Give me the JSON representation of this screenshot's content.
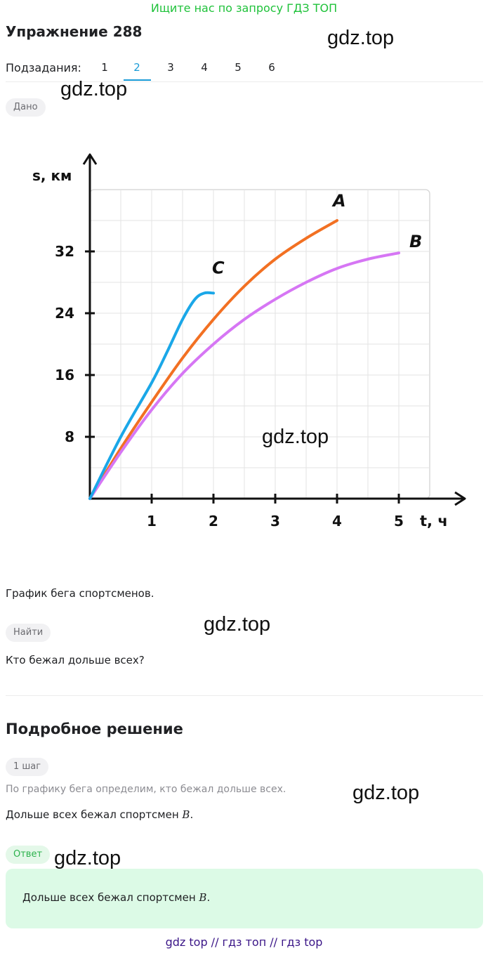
{
  "promo": "Ищите нас по запросу ГДЗ ТОП",
  "title": "Упражнение 288",
  "watermark": "gdz.top",
  "subtasks": {
    "label": "Подзадания:",
    "items": [
      "1",
      "2",
      "3",
      "4",
      "5",
      "6"
    ],
    "active": "2"
  },
  "given": {
    "badge": "Дано",
    "caption": "График бега спортсменов."
  },
  "find": {
    "badge": "Найти",
    "question": "Кто бежал дольше всех?"
  },
  "solution": {
    "heading": "Подробное решение",
    "step_badge": "1 шаг",
    "step_hint": "По графику бега определим, кто бежал дольше всех.",
    "step_text": "Дольше всех бежал спортсмен",
    "step_var": "B",
    "step_end": "."
  },
  "answer": {
    "badge": "Ответ",
    "text": "Дольше всех бежал спортсмен",
    "var": "B",
    "end": "."
  },
  "footer": "gdz top  //  гдз топ  //  гдз top",
  "chart_data": {
    "type": "line",
    "xlabel": "t, ч",
    "ylabel": "s, км",
    "xlim": [
      0,
      5.5
    ],
    "ylim": [
      0,
      40
    ],
    "x_ticks": [
      1,
      2,
      3,
      4,
      5
    ],
    "y_ticks": [
      8,
      16,
      24,
      32
    ],
    "grid": true,
    "series": [
      {
        "name": "A",
        "color": "#f27022",
        "points": [
          [
            0,
            0
          ],
          [
            0.5,
            6.5
          ],
          [
            1,
            12.5
          ],
          [
            1.5,
            18.2
          ],
          [
            2,
            23.2
          ],
          [
            2.5,
            27.5
          ],
          [
            3,
            31
          ],
          [
            3.5,
            33.7
          ],
          [
            4,
            36
          ]
        ]
      },
      {
        "name": "B",
        "color": "#d676f4",
        "points": [
          [
            0,
            0
          ],
          [
            0.5,
            6
          ],
          [
            1,
            11.5
          ],
          [
            1.5,
            16.2
          ],
          [
            2,
            20
          ],
          [
            2.5,
            23.2
          ],
          [
            3,
            25.8
          ],
          [
            3.5,
            28
          ],
          [
            4,
            29.8
          ],
          [
            4.5,
            31
          ],
          [
            5,
            31.8
          ]
        ]
      },
      {
        "name": "C",
        "color": "#1aa7e8",
        "points": [
          [
            0,
            0
          ],
          [
            0.5,
            8
          ],
          [
            1,
            15
          ],
          [
            1.25,
            19
          ],
          [
            1.5,
            23.2
          ],
          [
            1.7,
            25.8
          ],
          [
            1.85,
            26.6
          ],
          [
            2,
            26.6
          ]
        ]
      }
    ]
  }
}
